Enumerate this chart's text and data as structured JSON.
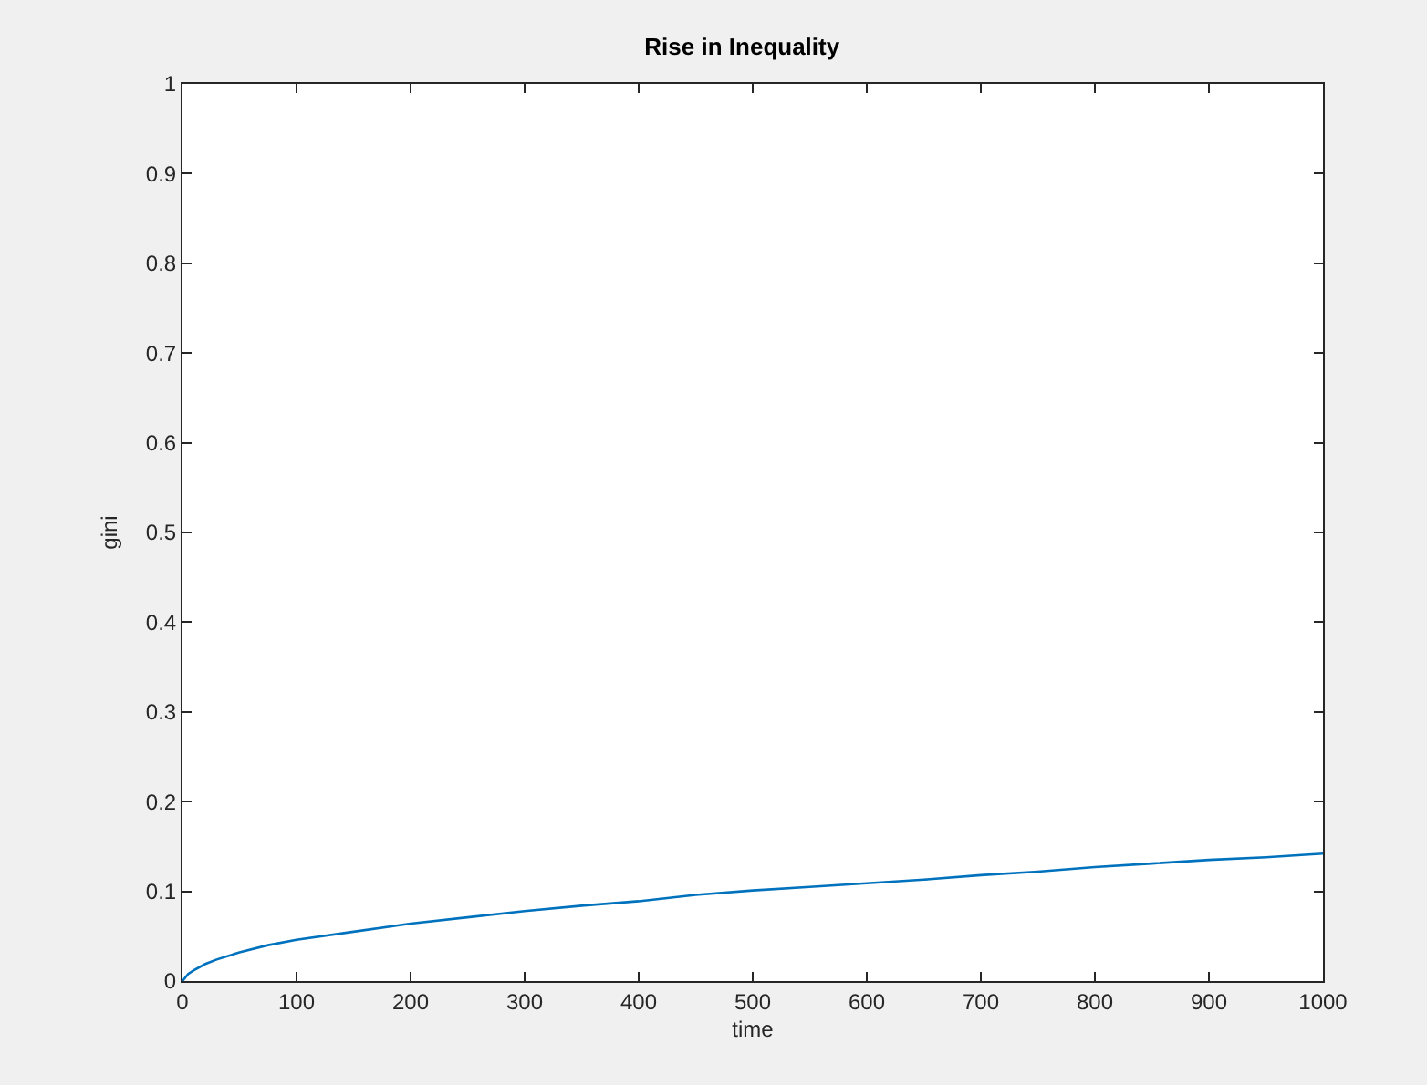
{
  "chart_data": {
    "type": "line",
    "title": "Rise in Inequality",
    "xlabel": "time",
    "ylabel": "gini",
    "x": [
      0,
      5,
      10,
      20,
      30,
      50,
      75,
      100,
      150,
      200,
      250,
      300,
      350,
      400,
      450,
      500,
      550,
      600,
      650,
      700,
      750,
      800,
      850,
      900,
      950,
      1000
    ],
    "series": [
      {
        "color": "#0072bd",
        "values": [
          0,
          0.008,
          0.012,
          0.019,
          0.024,
          0.032,
          0.04,
          0.046,
          0.055,
          0.064,
          0.071,
          0.078,
          0.084,
          0.089,
          0.096,
          0.101,
          0.105,
          0.109,
          0.113,
          0.118,
          0.122,
          0.127,
          0.131,
          0.135,
          0.138,
          0.142
        ]
      }
    ],
    "xlim": [
      0,
      1000
    ],
    "xticks": [
      0,
      100,
      200,
      300,
      400,
      500,
      600,
      700,
      800,
      900,
      1000
    ],
    "ylim": [
      0,
      1
    ],
    "yticks": [
      0,
      0.1,
      0.2,
      0.3,
      0.4,
      0.5,
      0.6,
      0.7,
      0.8,
      0.9,
      1
    ],
    "grid": false,
    "marker": "none",
    "line_style": "solid"
  }
}
